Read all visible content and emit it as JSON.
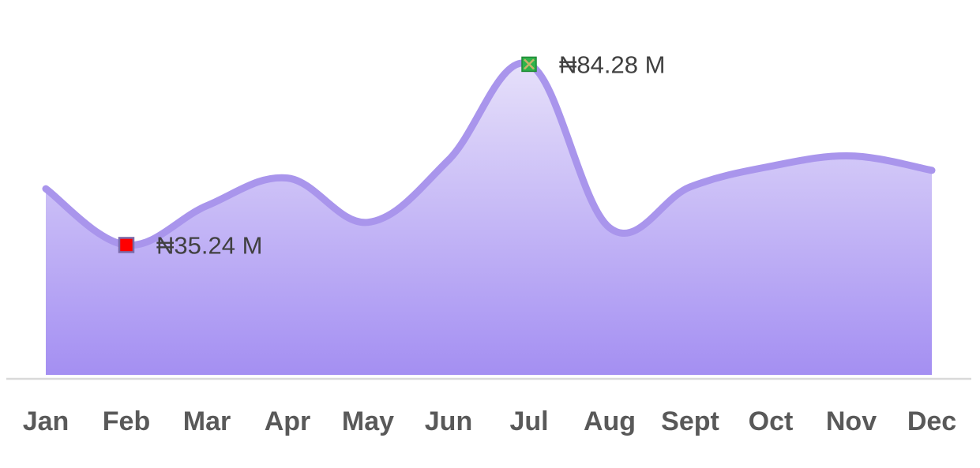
{
  "chart_data": {
    "type": "area",
    "title": "",
    "xlabel": "",
    "ylabel": "",
    "categories": [
      "Jan",
      "Feb",
      "Mar",
      "Apr",
      "May",
      "Jun",
      "Jul",
      "Aug",
      "Sept",
      "Oct",
      "Nov",
      "Dec"
    ],
    "series": [
      {
        "values": [
          50.5,
          35.24,
          45.9,
          53.4,
          41.4,
          58.3,
          84.28,
          39.9,
          51.0,
          56.6,
          59.4,
          55.5
        ]
      }
    ],
    "ylim": [
      0,
      100
    ],
    "grid": false,
    "legend": "none",
    "colors": {
      "line": "#a995ec",
      "fill_top": "#e6e0fa",
      "fill_bottom": "#a48ff2",
      "axis": "#d9d9d9",
      "min_marker": "#ff0000",
      "max_marker": "#2fb34a"
    },
    "annotations": [
      {
        "category": "Feb",
        "kind": "minimum",
        "marker": "square",
        "label": "₦35.24 M"
      },
      {
        "category": "Jul",
        "kind": "maximum",
        "marker": "square-x",
        "label": "₦84.28 M"
      }
    ]
  }
}
